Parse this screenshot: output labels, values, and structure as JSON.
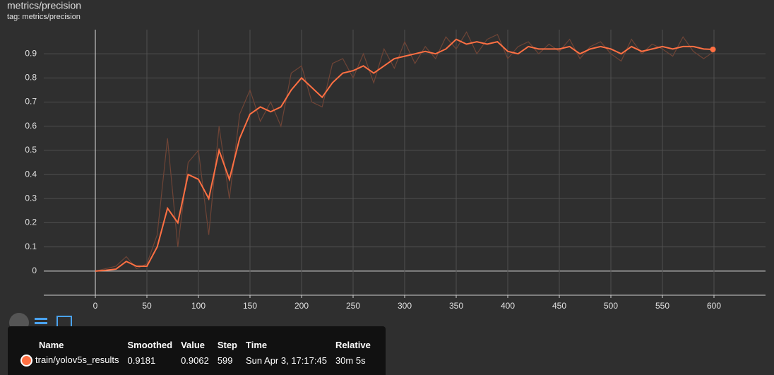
{
  "chart_data": {
    "type": "line",
    "title": "metrics/precision",
    "subtitle": "tag: metrics/precision",
    "x": [
      0,
      10,
      20,
      30,
      40,
      50,
      60,
      70,
      80,
      90,
      100,
      110,
      120,
      130,
      140,
      150,
      160,
      170,
      180,
      190,
      200,
      210,
      220,
      230,
      240,
      250,
      260,
      270,
      280,
      290,
      300,
      310,
      320,
      330,
      340,
      350,
      360,
      370,
      380,
      390,
      400,
      410,
      420,
      430,
      440,
      450,
      460,
      470,
      480,
      490,
      500,
      510,
      520,
      530,
      540,
      550,
      560,
      570,
      580,
      590,
      599
    ],
    "series": [
      {
        "color": "#6e4436",
        "values": [
          0,
          0.01,
          0.02,
          0.06,
          0.01,
          0.03,
          0.15,
          0.55,
          0.1,
          0.45,
          0.5,
          0.15,
          0.6,
          0.3,
          0.65,
          0.75,
          0.62,
          0.7,
          0.6,
          0.82,
          0.85,
          0.7,
          0.68,
          0.86,
          0.88,
          0.8,
          0.9,
          0.78,
          0.92,
          0.84,
          0.95,
          0.86,
          0.93,
          0.88,
          0.97,
          0.92,
          0.99,
          0.9,
          0.96,
          0.98,
          0.88,
          0.93,
          0.95,
          0.9,
          0.94,
          0.91,
          0.96,
          0.88,
          0.93,
          0.95,
          0.9,
          0.87,
          0.96,
          0.9,
          0.94,
          0.92,
          0.89,
          0.97,
          0.91,
          0.88,
          0.9062
        ]
      },
      {
        "color": "#ff7043",
        "values": [
          0,
          0.003,
          0.008,
          0.04,
          0.02,
          0.02,
          0.1,
          0.26,
          0.2,
          0.4,
          0.38,
          0.3,
          0.5,
          0.38,
          0.55,
          0.65,
          0.68,
          0.66,
          0.68,
          0.75,
          0.8,
          0.76,
          0.72,
          0.78,
          0.82,
          0.83,
          0.85,
          0.82,
          0.85,
          0.88,
          0.89,
          0.9,
          0.91,
          0.9,
          0.92,
          0.96,
          0.94,
          0.95,
          0.94,
          0.95,
          0.91,
          0.9,
          0.93,
          0.92,
          0.92,
          0.92,
          0.93,
          0.9,
          0.92,
          0.93,
          0.92,
          0.9,
          0.93,
          0.91,
          0.92,
          0.93,
          0.92,
          0.93,
          0.93,
          0.92,
          0.9181
        ]
      }
    ],
    "xlim": [
      -50,
      650
    ],
    "ylim": [
      -0.1,
      1.0
    ],
    "xticks": [
      0,
      50,
      100,
      150,
      200,
      250,
      300,
      350,
      400,
      450,
      500,
      550,
      600
    ],
    "yticks": [
      0,
      0.1,
      0.2,
      0.3,
      0.4,
      0.5,
      0.6,
      0.7,
      0.8,
      0.9
    ],
    "grid": true
  },
  "tooltip": {
    "columns": [
      "Name",
      "Smoothed",
      "Value",
      "Step",
      "Time",
      "Relative"
    ],
    "row": [
      "train/yolov5s_results",
      "0.9181",
      "0.9062",
      "599",
      "Sun Apr 3, 17:17:45",
      "30m 5s"
    ]
  }
}
